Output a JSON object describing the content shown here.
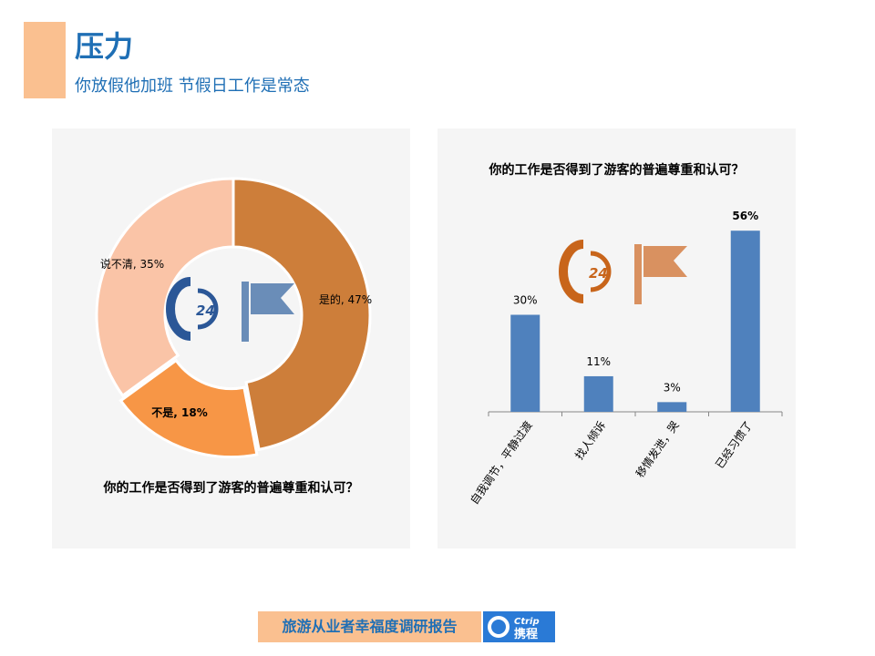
{
  "header": {
    "title": "压力",
    "subtitle": "你放假他加班   节假日工作是常态"
  },
  "footer": {
    "label": "旅游从业者幸福度调研报告",
    "logo_text": "Ctrip 携程"
  },
  "colors": {
    "accent": "#FAC090",
    "title": "#1F6FB5",
    "bar": "#4F81BD",
    "pie": [
      "#CD7E3A",
      "#F79646",
      "#FAC4A7"
    ]
  },
  "chart_data": [
    {
      "type": "pie",
      "title": "你的工作是否得到了游客的普遍尊重和认可？",
      "categories": [
        "是的",
        "不是",
        "说不清"
      ],
      "values": [
        47,
        18,
        35
      ],
      "labels": [
        "是的, 47%",
        "不是, 18%",
        "说不清, 35%"
      ]
    },
    {
      "type": "bar",
      "title": "你的工作是否得到了游客的普遍尊重和认可？",
      "categories": [
        "自我调节，平静过渡",
        "找人倾诉",
        "移情发泄，哭",
        "已经习惯了"
      ],
      "values": [
        30,
        11,
        3,
        56
      ],
      "labels": [
        "30%",
        "11%",
        "3%",
        "56%"
      ],
      "ylim": [
        0,
        60
      ]
    }
  ]
}
